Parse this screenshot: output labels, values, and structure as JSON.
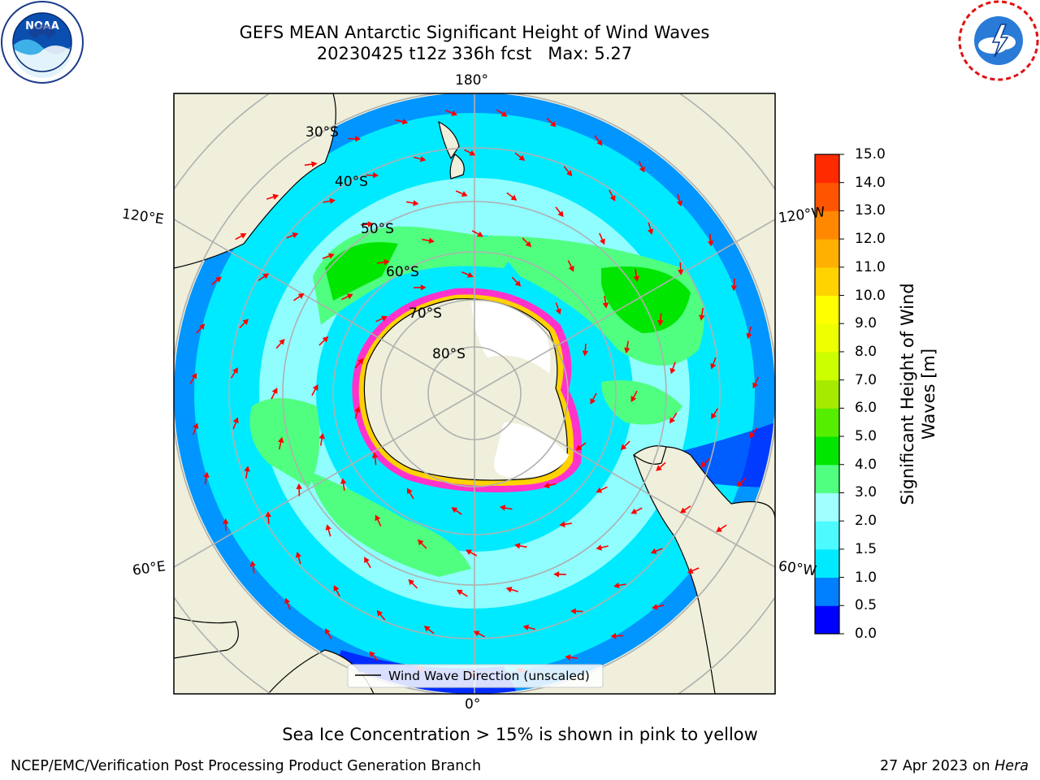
{
  "title": {
    "line1": "GEFS MEAN Antarctic Significant Height of Wind Waves",
    "line2": "20230425 t12z 336h fcst   Max: 5.27"
  },
  "logos": {
    "left": "noaa-logo",
    "right": "nws-logo"
  },
  "map": {
    "projection": "south-polar-stereographic",
    "colors": {
      "land": "#efefdb",
      "antarctic_ice_white": "#ffffff",
      "sea_ice": "#ff33cc",
      "grid": "#b0b0b0",
      "arrow": "#ff0000"
    },
    "lon_labels": {
      "top": "180°",
      "bottom": "0°",
      "left_upper": "120°E",
      "left_lower": "60°E",
      "right_upper": "120°W",
      "right_lower": "60°W"
    },
    "lat_labels": [
      "30°S",
      "40°S",
      "50°S",
      "60°S",
      "70°S",
      "80°S"
    ],
    "legend": "Wind Wave Direction (unscaled)"
  },
  "colorbar": {
    "label": "Significant Height of Wind Waves [m]",
    "ticks": [
      "0.0",
      "0.5",
      "1.0",
      "1.5",
      "2.0",
      "3.0",
      "4.0",
      "5.0",
      "6.0",
      "7.0",
      "8.0",
      "9.0",
      "10.0",
      "11.0",
      "12.0",
      "13.0",
      "14.0",
      "15.0"
    ],
    "colors": [
      "#0000ff",
      "#0080ff",
      "#00eaff",
      "#4dfaff",
      "#a0ffff",
      "#50ff80",
      "#00e600",
      "#55ee00",
      "#a6ea00",
      "#ccff00",
      "#eeff00",
      "#ffff00",
      "#ffd200",
      "#ffb000",
      "#ff8800",
      "#ff5500",
      "#ff2a00",
      "#ff0000"
    ]
  },
  "ice_note": "Sea Ice Concentration > 15% is shown in pink to yellow",
  "footer": {
    "left": "NCEP/EMC/Verification Post Processing Product Generation Branch",
    "date": "27 Apr 2023 on",
    "host": "Hera"
  }
}
